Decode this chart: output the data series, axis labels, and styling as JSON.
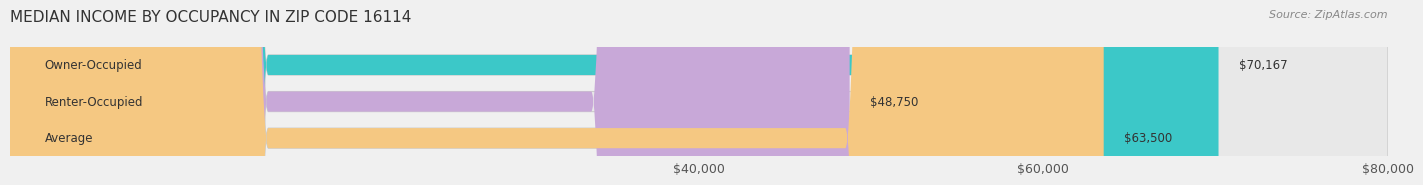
{
  "title": "MEDIAN INCOME BY OCCUPANCY IN ZIP CODE 16114",
  "source": "Source: ZipAtlas.com",
  "categories": [
    "Owner-Occupied",
    "Renter-Occupied",
    "Average"
  ],
  "values": [
    70167,
    48750,
    63500
  ],
  "bar_colors": [
    "#3cc8c8",
    "#c8a8d8",
    "#f5c882"
  ],
  "bar_labels": [
    "$70,167",
    "$48,750",
    "$63,500"
  ],
  "xlim": [
    0,
    80000
  ],
  "xticks": [
    40000,
    60000,
    80000
  ],
  "xtick_labels": [
    "$40,000",
    "$60,000",
    "$80,000"
  ],
  "background_color": "#f0f0f0",
  "bar_bg_color": "#e8e8e8",
  "title_fontsize": 11,
  "source_fontsize": 8,
  "label_fontsize": 8.5,
  "tick_fontsize": 9
}
